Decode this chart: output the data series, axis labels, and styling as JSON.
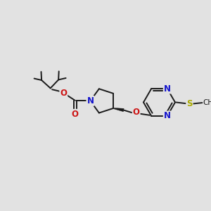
{
  "background_color": "#e2e2e2",
  "bond_color": "#1a1a1a",
  "N_color": "#1414cc",
  "O_color": "#cc1414",
  "S_color": "#aaaa00",
  "figsize": [
    3.0,
    3.0
  ],
  "dpi": 100,
  "xlim": [
    0,
    10
  ],
  "ylim": [
    0,
    10
  ]
}
